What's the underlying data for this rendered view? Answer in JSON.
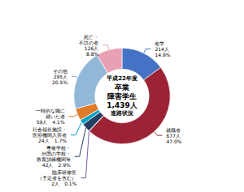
{
  "chart_data": {
    "type": "pie",
    "categories": [
      "進学\n214人\n14.9%",
      "就職者\n677人\n47.0%",
      "臨床研修医\n（予定者を含む）\n2人　0.1%",
      "専修学校・\n外国の学校・\n教育訓練機関等\n42人　2.9%",
      "社会福祉施設・\n医療機関入所者\n24人　1.7%",
      "一時的な職に\n就いた者\n59人　4.1%",
      "その他\n295人\n20.5%",
      "死亡・\n不詳の者\n126人\n8.8%"
    ],
    "values": [
      214,
      677,
      2,
      42,
      24,
      59,
      295,
      126
    ],
    "colors": [
      "#4472C4",
      "#9B2335",
      "#7B5EA7",
      "#243F60",
      "#00A2C7",
      "#E07B2A",
      "#92B8D8",
      "#E8A0B4"
    ],
    "annotations": [
      "平成22年度",
      "卒業",
      "障害学生",
      "1,439人",
      "進路状況"
    ]
  }
}
